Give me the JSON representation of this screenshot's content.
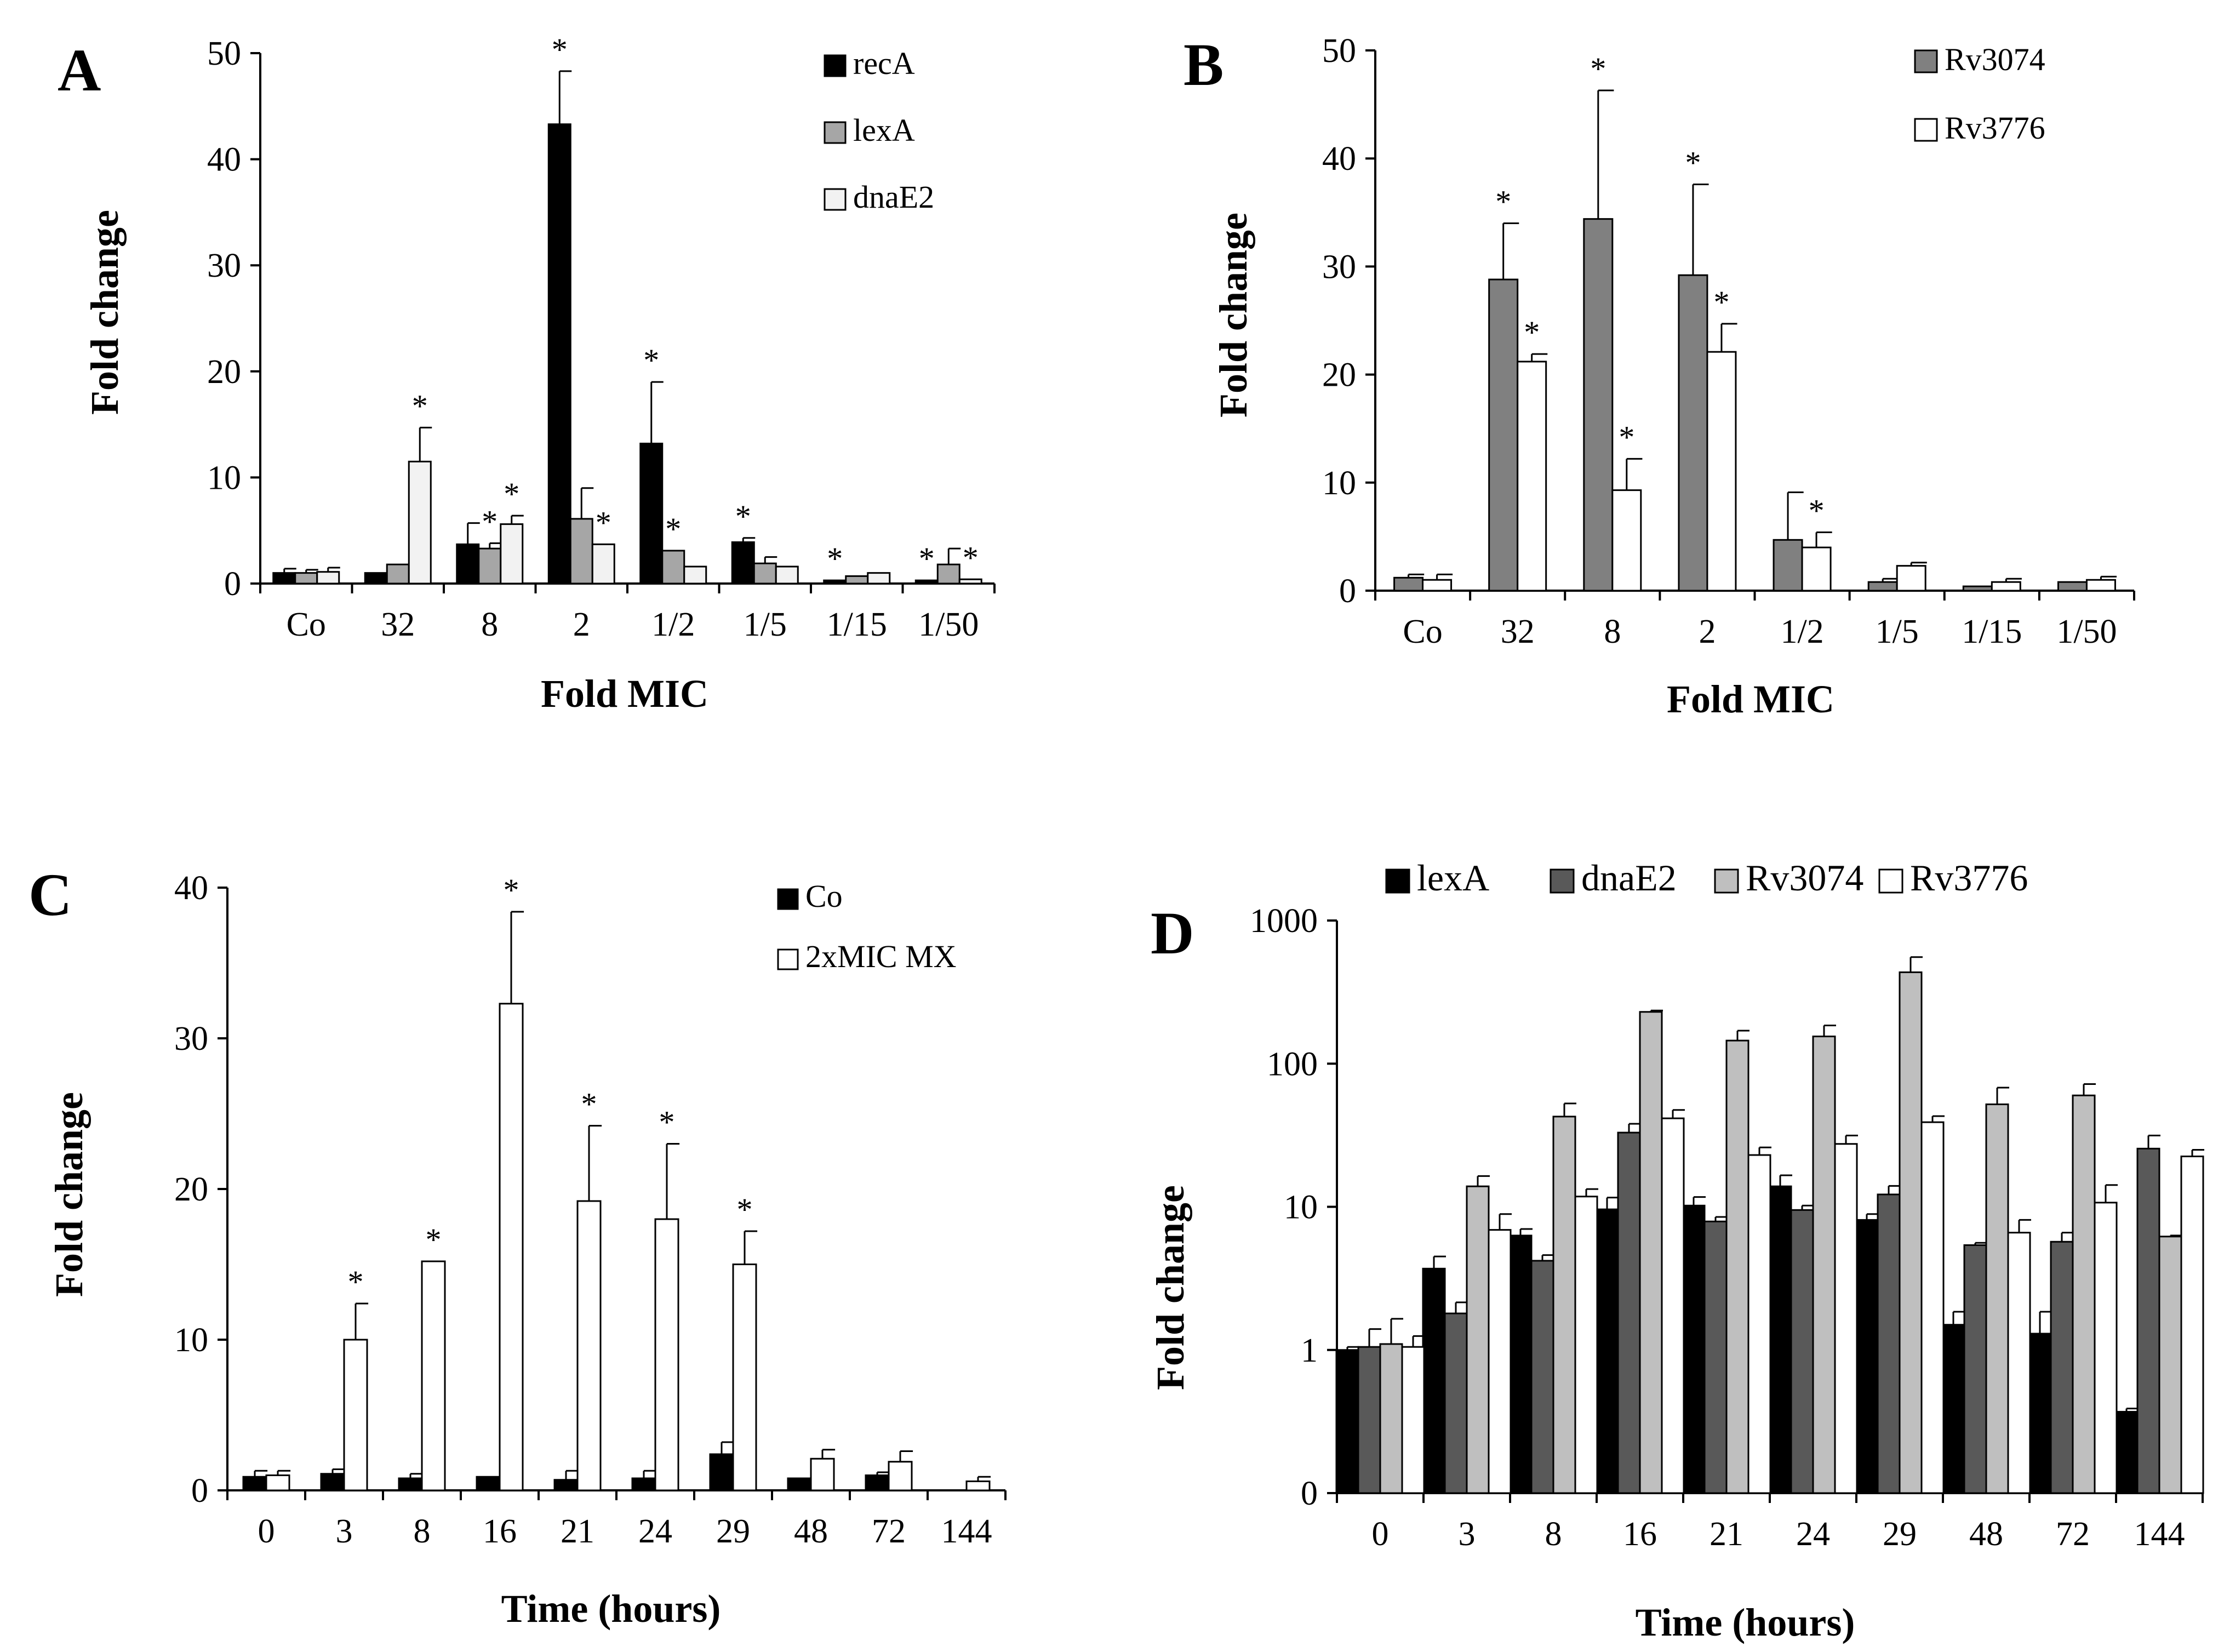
{
  "figure": {
    "colors": {
      "black": "#000000",
      "darkgray": "#595959",
      "midgray": "#7f7f7f",
      "lightgray": "#bfbfbf",
      "verylight": "#f2f2f2",
      "white": "#ffffff"
    }
  },
  "chart_data": [
    {
      "panel": "A",
      "type": "bar",
      "xlabel": "Fold MIC",
      "ylabel": "Fold change",
      "ylim": [
        0,
        50
      ],
      "yticks": [
        0,
        10,
        20,
        30,
        40,
        50
      ],
      "ytick_labels": [
        "0",
        "10",
        "20",
        "30",
        "40",
        "50"
      ],
      "legend_position": "top-right",
      "categories": [
        "Co",
        "32",
        "8",
        "2",
        "1/2",
        "1/5",
        "1/15",
        "1/50"
      ],
      "series": [
        {
          "name": "recA",
          "color": "#000000",
          "values": [
            1.0,
            1.0,
            3.7,
            43.3,
            13.2,
            3.9,
            0.3,
            0.3
          ],
          "errors": [
            0.4,
            0,
            2.0,
            5.0,
            5.8,
            0.4,
            0,
            0
          ],
          "stars": [
            false,
            false,
            false,
            true,
            true,
            true,
            true,
            true
          ]
        },
        {
          "name": "lexA",
          "color": "#a6a6a6",
          "values": [
            1.0,
            1.8,
            3.3,
            6.1,
            3.1,
            1.9,
            0.7,
            1.8
          ],
          "errors": [
            0.3,
            0,
            0.5,
            2.9,
            0,
            0.6,
            0,
            1.5
          ],
          "stars": [
            false,
            false,
            true,
            false,
            true,
            false,
            false,
            false
          ]
        },
        {
          "name": "dnaE2",
          "color": "#f2f2f2",
          "values": [
            1.1,
            11.5,
            5.6,
            3.7,
            1.6,
            1.6,
            1.0,
            0.4
          ],
          "errors": [
            0.4,
            3.2,
            0.8,
            0,
            0,
            0,
            0,
            0
          ],
          "stars": [
            false,
            true,
            true,
            true,
            false,
            false,
            false,
            true
          ]
        }
      ]
    },
    {
      "panel": "B",
      "type": "bar",
      "xlabel": "Fold MIC",
      "ylabel": "Fold change",
      "ylim": [
        0,
        50
      ],
      "yticks": [
        0,
        10,
        20,
        30,
        40,
        50
      ],
      "ytick_labels": [
        "0",
        "10",
        "20",
        "30",
        "40",
        "50"
      ],
      "legend_position": "top-right",
      "categories": [
        "Co",
        "32",
        "8",
        "2",
        "1/2",
        "1/5",
        "1/15",
        "1/50"
      ],
      "series": [
        {
          "name": "Rv3074",
          "color": "#808080",
          "values": [
            1.2,
            28.8,
            34.4,
            29.2,
            4.7,
            0.8,
            0.4,
            0.8
          ],
          "errors": [
            0.3,
            5.2,
            11.9,
            8.4,
            4.4,
            0.3,
            0,
            0
          ],
          "stars": [
            false,
            true,
            true,
            true,
            false,
            false,
            false,
            false
          ]
        },
        {
          "name": "Rv3776",
          "color": "#ffffff",
          "values": [
            1.0,
            21.2,
            9.3,
            22.1,
            4.0,
            2.3,
            0.8,
            1.0
          ],
          "errors": [
            0.5,
            0.7,
            2.9,
            2.6,
            1.4,
            0.3,
            0.3,
            0.3
          ],
          "stars": [
            false,
            true,
            true,
            true,
            true,
            false,
            false,
            false
          ]
        }
      ]
    },
    {
      "panel": "C",
      "type": "bar",
      "xlabel": "Time (hours)",
      "ylabel": "Fold change",
      "ylim": [
        0,
        40
      ],
      "yticks": [
        0,
        10,
        20,
        30,
        40
      ],
      "ytick_labels": [
        "0",
        "10",
        "20",
        "30",
        "40"
      ],
      "legend_position": "top-right",
      "categories": [
        "0",
        "3",
        "8",
        "16",
        "21",
        "24",
        "29",
        "48",
        "72",
        "144"
      ],
      "series": [
        {
          "name": "Co",
          "color": "#000000",
          "values": [
            0.9,
            1.1,
            0.8,
            0.9,
            0.7,
            0.8,
            2.4,
            0.8,
            1.0,
            0
          ],
          "errors": [
            0.4,
            0.3,
            0.3,
            0,
            0.6,
            0.5,
            0.8,
            0,
            0.2,
            0
          ],
          "stars": [
            false,
            false,
            false,
            false,
            false,
            false,
            false,
            false,
            false,
            false
          ]
        },
        {
          "name": "2xMIC MX",
          "color": "#ffffff",
          "values": [
            1.0,
            10.0,
            15.2,
            32.3,
            19.2,
            18.0,
            15.0,
            2.1,
            1.9,
            0.6
          ],
          "errors": [
            0.3,
            2.4,
            0,
            6.1,
            5.0,
            5.0,
            2.2,
            0.6,
            0.7,
            0.3
          ],
          "stars": [
            false,
            true,
            true,
            true,
            true,
            true,
            true,
            false,
            false,
            false
          ]
        }
      ]
    },
    {
      "panel": "D",
      "type": "bar",
      "scale": "log",
      "xlabel": "Time (hours)",
      "ylabel": "Fold change",
      "ylim": [
        0.1,
        1000
      ],
      "yticks": [
        0.1,
        1,
        10,
        100,
        1000
      ],
      "ytick_labels": [
        "0",
        "1",
        "10",
        "100",
        "1000"
      ],
      "legend_position": "top",
      "categories": [
        "0",
        "3",
        "8",
        "16",
        "21",
        "24",
        "29",
        "48",
        "72",
        "144"
      ],
      "series": [
        {
          "name": "lexA",
          "color": "#000000",
          "values": [
            1.0,
            3.7,
            6.3,
            9.6,
            10.2,
            13.9,
            8.1,
            1.5,
            1.3,
            0.37
          ],
          "errors": [
            0.05,
            0.8,
            0.7,
            2.0,
            1.5,
            2.7,
            0.8,
            0.35,
            0.55,
            0.02
          ]
        },
        {
          "name": "dnaE2",
          "color": "#595959",
          "values": [
            1.05,
            1.8,
            4.2,
            33,
            7.9,
            9.5,
            12.2,
            5.4,
            5.7,
            25.5
          ],
          "errors": [
            0.35,
            0.35,
            0.4,
            5,
            0.6,
            0.7,
            1.8,
            0.2,
            0.9,
            6
          ]
        },
        {
          "name": "Rv3074",
          "color": "#bfbfbf",
          "values": [
            1.1,
            13.9,
            42.7,
            230,
            145,
            155,
            435,
            52,
            60,
            6.2
          ],
          "errors": [
            0.55,
            2.5,
            10,
            5,
            25,
            30,
            120,
            16,
            12,
            0.1
          ]
        },
        {
          "name": "Rv3776",
          "color": "#ffffff",
          "values": [
            1.05,
            6.9,
            11.8,
            41.5,
            23,
            27.5,
            39,
            6.6,
            10.7,
            22.5
          ],
          "errors": [
            0.2,
            2.0,
            1.5,
            6,
            3,
            4,
            4,
            1.5,
            3.5,
            2.5
          ]
        }
      ]
    }
  ]
}
